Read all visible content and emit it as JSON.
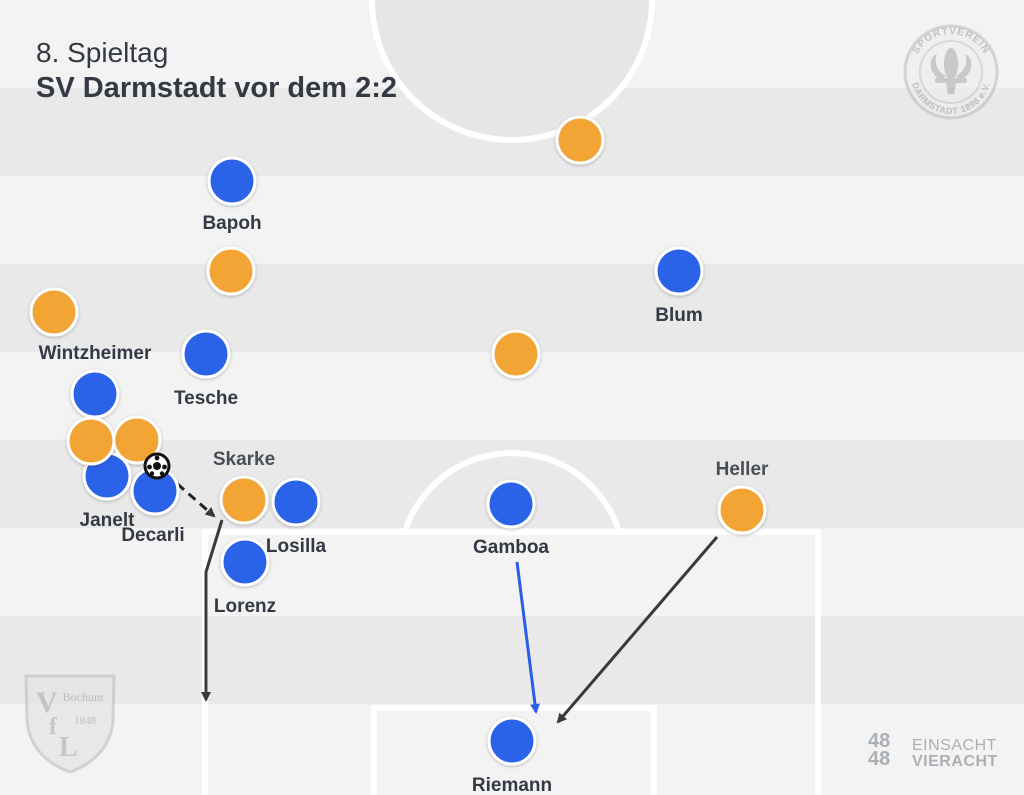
{
  "header": {
    "kicker": "8. Spieltag",
    "title": "SV Darmstadt vor dem 2:2"
  },
  "colors": {
    "home": "#2a62e8",
    "away": "#f2a534",
    "arrow_dark": "#3a3a3a",
    "arrow_blue": "#2a5ee6"
  },
  "teams": {
    "home": {
      "players": [
        {
          "name": "Bapoh"
        },
        {
          "name": "Blum"
        },
        {
          "name": "Tesche"
        },
        {
          "name": "Janelt"
        },
        {
          "name": "Decarli"
        },
        {
          "name": "Losilla"
        },
        {
          "name": "Lorenz"
        },
        {
          "name": "Gamboa"
        },
        {
          "name": "Riemann"
        }
      ]
    },
    "away": {
      "labeled_players": [
        {
          "name": "Wintzheimer"
        },
        {
          "name": "Skarke"
        },
        {
          "name": "Heller"
        }
      ]
    }
  },
  "ball": {
    "icon": "soccer-ball-icon"
  },
  "logos": {
    "darmstadt": {
      "top_text": "SPORTVEREIN",
      "bottom_text": "DARMSTADT 1898 e.V.",
      "icon": "fleur-de-lis-icon"
    },
    "bochum": {
      "text": "Bochum",
      "year": "1848",
      "letters": "VfL"
    }
  },
  "branding": {
    "number": "48 48",
    "line1": "EINSACHT",
    "line2": "VIERACHT"
  }
}
